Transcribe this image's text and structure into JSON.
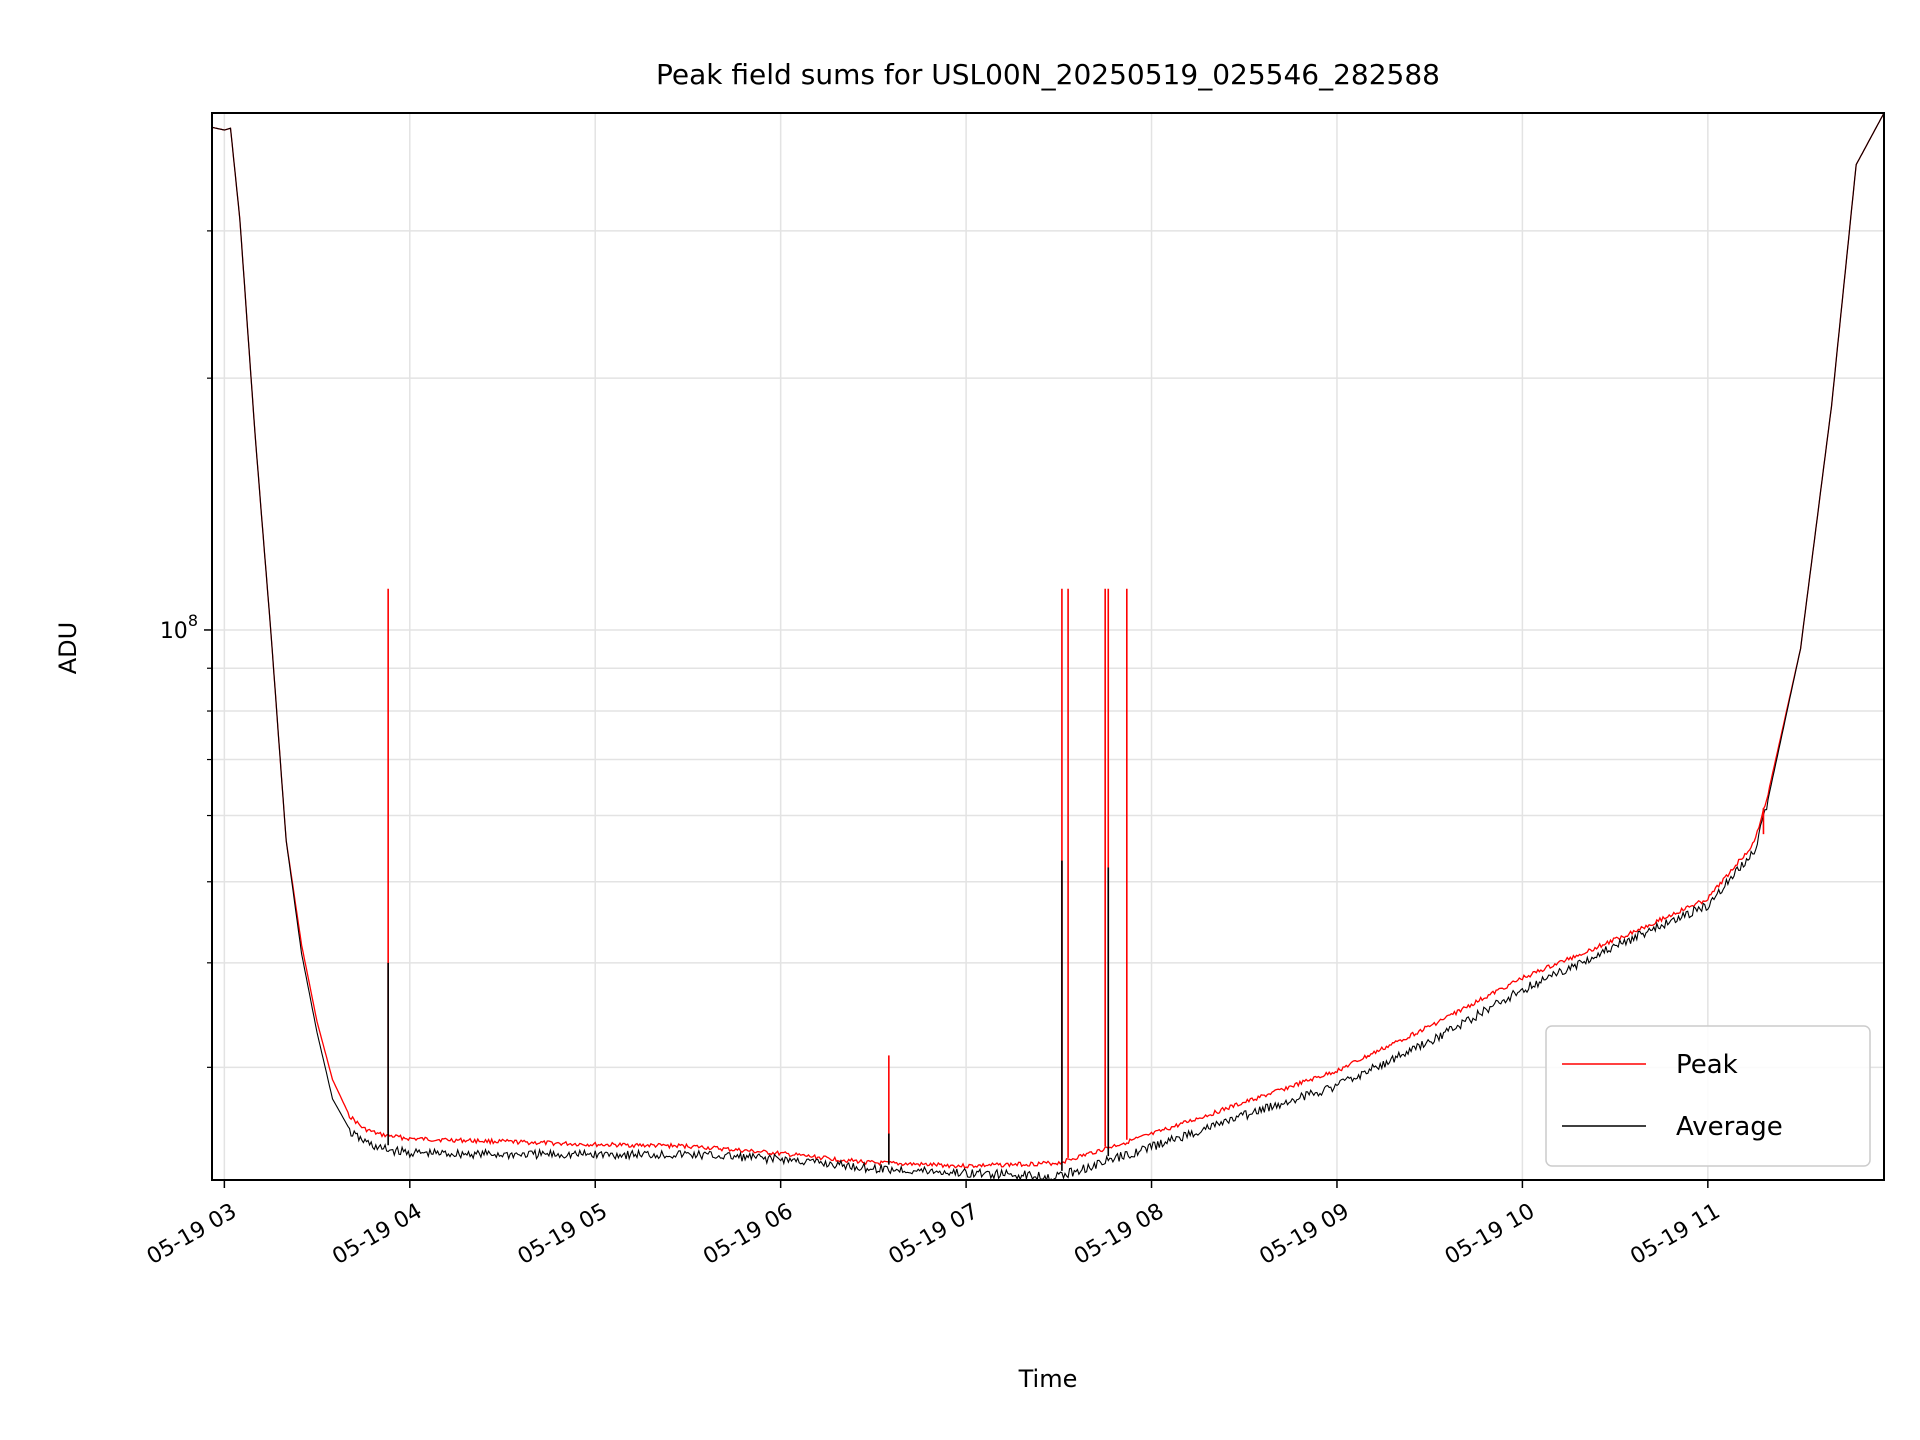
{
  "chart_data": {
    "type": "line",
    "title": "Peak field sums for USL00N_20250519_025546_282588",
    "xlabel": "Time",
    "ylabel": "ADU",
    "yscale": "log",
    "grid": true,
    "legend_position": "bottom-right",
    "x_ticks": [
      "05-19 03",
      "05-19 04",
      "05-19 05",
      "05-19 06",
      "05-19 07",
      "05-19 08",
      "05-19 09",
      "05-19 10",
      "05-19 11"
    ],
    "xlim": [
      "05-19 02:56",
      "05-19 11:57"
    ],
    "ylim": [
      22000000,
      415000000
    ],
    "y_major_tick_label": {
      "base": "10",
      "exponent": "8",
      "value": 100000000
    },
    "y_minor_ticks": [
      30000000,
      40000000,
      50000000,
      60000000,
      70000000,
      80000000,
      90000000,
      200000000,
      300000000
    ],
    "series": [
      {
        "name": "Peak",
        "color": "#ff0000",
        "points": [
          [
            "05-19 02:56",
            399000000
          ],
          [
            "05-19 03:00",
            396000000
          ],
          [
            "05-19 03:02",
            398000000
          ],
          [
            "05-19 03:05",
            310000000
          ],
          [
            "05-19 03:10",
            170000000
          ],
          [
            "05-19 03:15",
            100000000
          ],
          [
            "05-19 03:20",
            56000000
          ],
          [
            "05-19 03:25",
            42000000
          ],
          [
            "05-19 03:30",
            34000000
          ],
          [
            "05-19 03:35",
            29000000
          ],
          [
            "05-19 03:40",
            26500000
          ],
          [
            "05-19 03:45",
            25500000
          ],
          [
            "05-19 03:50",
            25100000
          ],
          [
            "05-19 04:00",
            24800000
          ],
          [
            "05-19 04:30",
            24600000
          ],
          [
            "05-19 05:00",
            24400000
          ],
          [
            "05-19 05:30",
            24300000
          ],
          [
            "05-19 06:00",
            23800000
          ],
          [
            "05-19 06:30",
            23200000
          ],
          [
            "05-19 07:00",
            23000000
          ],
          [
            "05-19 07:30",
            23200000
          ],
          [
            "05-19 08:00",
            25100000
          ],
          [
            "05-19 08:30",
            27400000
          ],
          [
            "05-19 09:00",
            29900000
          ],
          [
            "05-19 09:30",
            33800000
          ],
          [
            "05-19 10:00",
            38600000
          ],
          [
            "05-19 10:30",
            42900000
          ],
          [
            "05-19 11:00",
            48000000
          ],
          [
            "05-19 11:15",
            56000000
          ],
          [
            "05-19 11:20",
            65000000
          ],
          [
            "05-19 11:30",
            95000000
          ],
          [
            "05-19 11:40",
            185000000
          ],
          [
            "05-19 11:48",
            360000000
          ],
          [
            "05-19 11:57",
            415000000
          ]
        ],
        "spikes": [
          [
            "05-19 03:53",
            112000000
          ],
          [
            "05-19 06:35",
            31000000
          ],
          [
            "05-19 07:31",
            112000000
          ],
          [
            "05-19 07:33",
            112000000
          ],
          [
            "05-19 07:45",
            112000000
          ],
          [
            "05-19 07:46",
            112000000
          ],
          [
            "05-19 07:52",
            112000000
          ],
          [
            "05-19 11:18",
            57000000
          ]
        ]
      },
      {
        "name": "Average",
        "color": "#000000",
        "points": [
          [
            "05-19 02:56",
            399000000
          ],
          [
            "05-19 03:00",
            396000000
          ],
          [
            "05-19 03:02",
            398000000
          ],
          [
            "05-19 03:05",
            310000000
          ],
          [
            "05-19 03:10",
            170000000
          ],
          [
            "05-19 03:15",
            100000000
          ],
          [
            "05-19 03:20",
            56000000
          ],
          [
            "05-19 03:25",
            41000000
          ],
          [
            "05-19 03:30",
            33000000
          ],
          [
            "05-19 03:35",
            27500000
          ],
          [
            "05-19 03:40",
            25500000
          ],
          [
            "05-19 03:45",
            24800000
          ],
          [
            "05-19 03:50",
            24300000
          ],
          [
            "05-19 04:00",
            24000000
          ],
          [
            "05-19 04:30",
            23900000
          ],
          [
            "05-19 05:00",
            23900000
          ],
          [
            "05-19 05:30",
            23900000
          ],
          [
            "05-19 06:00",
            23600000
          ],
          [
            "05-19 06:30",
            23000000
          ],
          [
            "05-19 07:00",
            22700000
          ],
          [
            "05-19 07:30",
            22500000
          ],
          [
            "05-19 08:00",
            24400000
          ],
          [
            "05-19 08:30",
            26600000
          ],
          [
            "05-19 09:00",
            28900000
          ],
          [
            "05-19 09:30",
            32600000
          ],
          [
            "05-19 10:00",
            37600000
          ],
          [
            "05-19 10:30",
            42400000
          ],
          [
            "05-19 11:00",
            47500000
          ],
          [
            "05-19 11:15",
            55000000
          ],
          [
            "05-19 11:20",
            64000000
          ],
          [
            "05-19 11:30",
            95000000
          ],
          [
            "05-19 11:40",
            185000000
          ],
          [
            "05-19 11:48",
            360000000
          ],
          [
            "05-19 11:57",
            415000000
          ]
        ],
        "spikes": [
          [
            "05-19 03:53",
            40000000
          ],
          [
            "05-19 06:35",
            25000000
          ],
          [
            "05-19 07:31",
            53000000
          ],
          [
            "05-19 07:46",
            52000000
          ]
        ]
      }
    ]
  }
}
